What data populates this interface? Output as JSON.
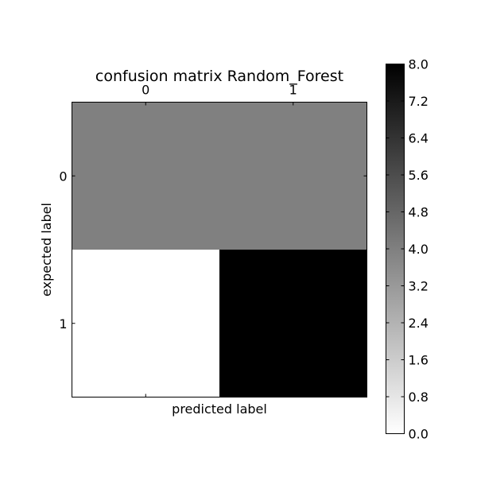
{
  "chart_data": {
    "type": "heatmap",
    "title": "confusion matrix Random_Forest",
    "xlabel": "predicted label",
    "ylabel": "expected label",
    "x_categories": [
      "0",
      "1"
    ],
    "y_categories": [
      "0",
      "1"
    ],
    "values": [
      [
        4,
        4
      ],
      [
        0,
        8
      ]
    ],
    "colorbar": {
      "min": 0.0,
      "max": 8.0,
      "ticks": [
        "0.0",
        "0.8",
        "1.6",
        "2.4",
        "3.2",
        "4.0",
        "4.8",
        "5.6",
        "6.4",
        "7.2",
        "8.0"
      ],
      "colormap": "gray_r",
      "low_color": "#ffffff",
      "high_color": "#000000"
    },
    "grid": false
  }
}
